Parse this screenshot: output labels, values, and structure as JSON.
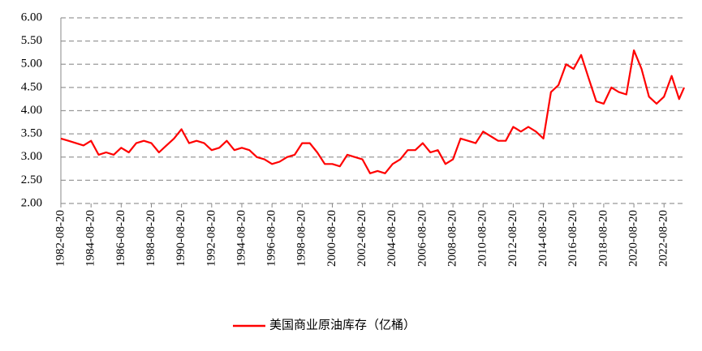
{
  "chart_data": {
    "type": "line",
    "x": [
      "1982-08-20",
      "1983-02-20",
      "1983-08-20",
      "1984-02-20",
      "1984-08-20",
      "1985-02-20",
      "1985-08-20",
      "1986-02-20",
      "1986-08-20",
      "1987-02-20",
      "1987-08-20",
      "1988-02-20",
      "1988-08-20",
      "1989-02-20",
      "1989-08-20",
      "1990-02-20",
      "1990-08-20",
      "1991-02-20",
      "1991-08-20",
      "1992-02-20",
      "1992-08-20",
      "1993-02-20",
      "1993-08-20",
      "1994-02-20",
      "1994-08-20",
      "1995-02-20",
      "1995-08-20",
      "1996-02-20",
      "1996-08-20",
      "1997-02-20",
      "1997-08-20",
      "1998-02-20",
      "1998-08-20",
      "1999-02-20",
      "1999-08-20",
      "2000-02-20",
      "2000-08-20",
      "2001-02-20",
      "2001-08-20",
      "2002-02-20",
      "2002-08-20",
      "2003-02-20",
      "2003-08-20",
      "2004-02-20",
      "2004-08-20",
      "2005-02-20",
      "2005-08-20",
      "2006-02-20",
      "2006-08-20",
      "2007-02-20",
      "2007-08-20",
      "2008-02-20",
      "2008-08-20",
      "2009-02-20",
      "2009-08-20",
      "2010-02-20",
      "2010-08-20",
      "2011-02-20",
      "2011-08-20",
      "2012-02-20",
      "2012-08-20",
      "2013-02-20",
      "2013-08-20",
      "2014-02-20",
      "2014-08-20",
      "2015-02-20",
      "2015-08-20",
      "2016-02-20",
      "2016-08-20",
      "2017-02-20",
      "2017-08-20",
      "2018-02-20",
      "2018-08-20",
      "2019-02-20",
      "2019-08-20",
      "2020-02-20",
      "2020-08-20",
      "2021-02-20",
      "2021-08-20",
      "2022-02-20",
      "2022-08-20",
      "2023-02-20",
      "2023-08-20",
      "2023-12-20"
    ],
    "series": [
      {
        "name": "美国商业原油库存（亿桶）",
        "color": "#ff0000",
        "values": [
          3.4,
          3.35,
          3.3,
          3.25,
          3.35,
          3.05,
          3.1,
          3.05,
          3.2,
          3.1,
          3.3,
          3.35,
          3.3,
          3.1,
          3.25,
          3.4,
          3.6,
          3.3,
          3.35,
          3.3,
          3.15,
          3.2,
          3.35,
          3.15,
          3.2,
          3.15,
          3.0,
          2.95,
          2.85,
          2.9,
          3.0,
          3.05,
          3.3,
          3.3,
          3.1,
          2.85,
          2.85,
          2.8,
          3.05,
          3.0,
          2.95,
          2.65,
          2.7,
          2.65,
          2.85,
          2.95,
          3.15,
          3.15,
          3.3,
          3.1,
          3.15,
          2.85,
          2.95,
          3.4,
          3.35,
          3.3,
          3.55,
          3.45,
          3.35,
          3.35,
          3.65,
          3.55,
          3.65,
          3.55,
          3.4,
          4.4,
          4.55,
          5.0,
          4.9,
          5.2,
          4.7,
          4.2,
          4.15,
          4.5,
          4.4,
          4.35,
          5.3,
          4.9,
          4.3,
          4.15,
          4.3,
          4.75,
          4.25,
          4.5
        ]
      }
    ],
    "xlim": [
      "1982-08-20",
      "2023-12-20"
    ],
    "xticks": [
      "1982-08-20",
      "1984-08-20",
      "1986-08-20",
      "1988-08-20",
      "1990-08-20",
      "1992-08-20",
      "1994-08-20",
      "1996-08-20",
      "1998-08-20",
      "2000-08-20",
      "2002-08-20",
      "2004-08-20",
      "2006-08-20",
      "2008-08-20",
      "2010-08-20",
      "2012-08-20",
      "2014-08-20",
      "2016-08-20",
      "2018-08-20",
      "2020-08-20",
      "2022-08-20"
    ],
    "ylim": [
      2,
      6
    ],
    "yticks": [
      {
        "value": 2,
        "label": "2.00"
      },
      {
        "value": 2.5,
        "label": "2.50"
      },
      {
        "value": 3,
        "label": "3.00"
      },
      {
        "value": 3.5,
        "label": "3.50"
      },
      {
        "value": 4,
        "label": "4.00"
      },
      {
        "value": 4.5,
        "label": "4.50"
      },
      {
        "value": 5,
        "label": "5.00"
      },
      {
        "value": 5.5,
        "label": "5.50"
      },
      {
        "value": 6,
        "label": "6.00"
      }
    ],
    "grid": true,
    "legend": "bottom"
  }
}
